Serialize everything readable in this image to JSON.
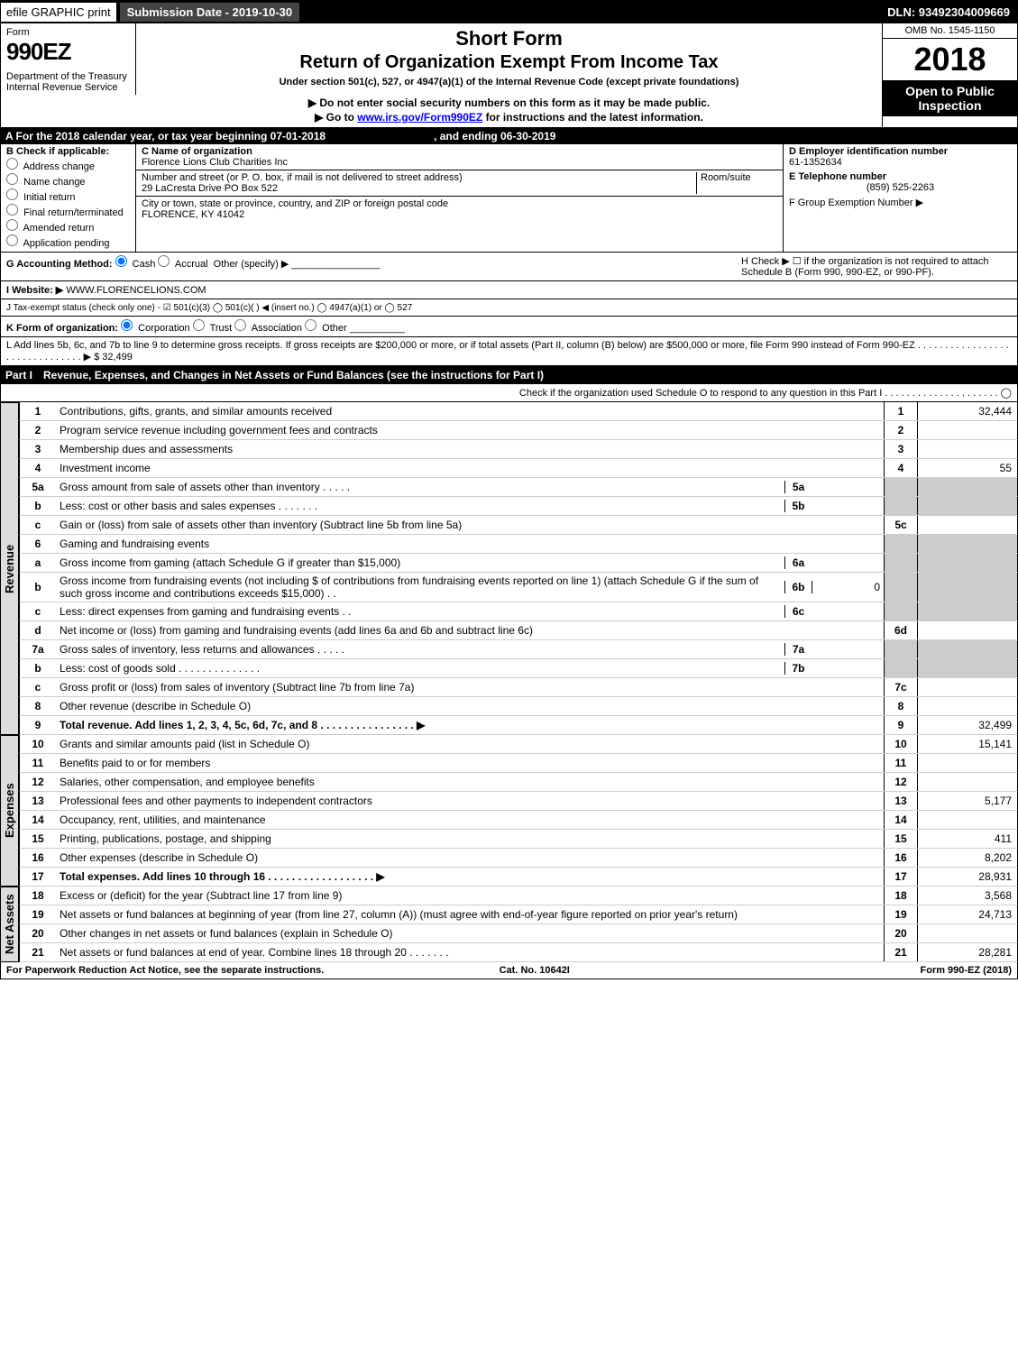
{
  "topbar": {
    "efile": "efile GRAPHIC print",
    "submission": "Submission Date - 2019-10-30",
    "dln": "DLN: 93492304009669"
  },
  "header": {
    "form_word": "Form",
    "form_no": "990EZ",
    "short": "Short Form",
    "title": "Return of Organization Exempt From Income Tax",
    "subtitle": "Under section 501(c), 527, or 4947(a)(1) of the Internal Revenue Code (except private foundations)",
    "warn": "▶ Do not enter social security numbers on this form as it may be made public.",
    "goto_pre": "▶ Go to ",
    "goto_link": "www.irs.gov/Form990EZ",
    "goto_post": " for instructions and the latest information.",
    "dept1": "Department of the Treasury",
    "dept2": "Internal Revenue Service",
    "omb": "OMB No. 1545-1150",
    "year": "2018",
    "open": "Open to Public Inspection"
  },
  "period": {
    "a": "A  For the 2018 calendar year, or tax year beginning 07-01-2018",
    "end": ", and ending 06-30-2019"
  },
  "box_b": {
    "label": "B  Check if applicable:",
    "opts": [
      "Address change",
      "Name change",
      "Initial return",
      "Final return/terminated",
      "Amended return",
      "Application pending"
    ]
  },
  "box_c": {
    "name_lab": "C Name of organization",
    "name": "Florence Lions Club Charities Inc",
    "addr_lab": "Number and street (or P. O. box, if mail is not delivered to street address)",
    "room_lab": "Room/suite",
    "addr": "29 LaCresta Drive PO Box 522",
    "city_lab": "City or town, state or province, country, and ZIP or foreign postal code",
    "city": "FLORENCE, KY  41042"
  },
  "box_d": {
    "ein_lab": "D Employer identification number",
    "ein": "61-1352634",
    "tel_lab": "E Telephone number",
    "tel": "(859) 525-2263",
    "grp_lab": "F Group Exemption Number  ▶"
  },
  "row_g": {
    "lab": "G Accounting Method:",
    "cash": "Cash",
    "accrual": "Accrual",
    "other": "Other (specify) ▶"
  },
  "row_h": {
    "text": "H  Check ▶ ☐ if the organization is not required to attach Schedule B (Form 990, 990-EZ, or 990-PF)."
  },
  "row_i": {
    "lab": "I Website: ▶",
    "val": "WWW.FLORENCELIONS.COM"
  },
  "row_j": {
    "text": "J Tax-exempt status (check only one) - ☑ 501(c)(3)  ◯ 501(c)(  ) ◀ (insert no.)  ◯ 4947(a)(1) or  ◯ 527"
  },
  "row_k": {
    "lab": "K Form of organization:",
    "opts": [
      "Corporation",
      "Trust",
      "Association",
      "Other"
    ]
  },
  "row_l": {
    "text": "L Add lines 5b, 6c, and 7b to line 9 to determine gross receipts. If gross receipts are $200,000 or more, or if total assets (Part II, column (B) below) are $500,000 or more, file Form 990 instead of Form 990-EZ  .  .  .  .  .  .  .  .  .  .  .  .  .  .  .  .  .  .  .  .  .  .  .  .  .  .  .  .  .  .  . ▶ $ 32,499"
  },
  "part1": {
    "num": "Part I",
    "title": "Revenue, Expenses, and Changes in Net Assets or Fund Balances (see the instructions for Part I)",
    "check": "Check if the organization used Schedule O to respond to any question in this Part I .  .  .  .  .  .  .  .  .  .  .  .  .  .  .  .  .  .  .  .  .  ◯"
  },
  "sections": {
    "rev": "Revenue",
    "exp": "Expenses",
    "na": "Net Assets"
  },
  "lines": [
    {
      "n": "1",
      "t": "Contributions, gifts, grants, and similar amounts received",
      "box": "1",
      "amt": "32,444"
    },
    {
      "n": "2",
      "t": "Program service revenue including government fees and contracts",
      "box": "2",
      "amt": ""
    },
    {
      "n": "3",
      "t": "Membership dues and assessments",
      "box": "3",
      "amt": ""
    },
    {
      "n": "4",
      "t": "Investment income",
      "box": "4",
      "amt": "55"
    },
    {
      "n": "5a",
      "t": "Gross amount from sale of assets other than inventory  .  .  .  .  .",
      "sb": "5a",
      "sa": ""
    },
    {
      "n": "b",
      "t": "Less: cost or other basis and sales expenses  .  .  .  .  .  .  .",
      "sb": "5b",
      "sa": ""
    },
    {
      "n": "c",
      "t": "Gain or (loss) from sale of assets other than inventory (Subtract line 5b from line 5a)",
      "box": "5c",
      "amt": ""
    },
    {
      "n": "6",
      "t": "Gaming and fundraising events",
      "noamt": true
    },
    {
      "n": "a",
      "t": "Gross income from gaming (attach Schedule G if greater than $15,000)",
      "sb": "6a",
      "sa": ""
    },
    {
      "n": "b",
      "t": "Gross income from fundraising events (not including $                         of contributions from fundraising events reported on line 1) (attach Schedule G if the sum of such gross income and contributions exceeds $15,000)   .  .",
      "sb": "6b",
      "sa": "0"
    },
    {
      "n": "c",
      "t": "Less: direct expenses from gaming and fundraising events    .  .",
      "sb": "6c",
      "sa": ""
    },
    {
      "n": "d",
      "t": "Net income or (loss) from gaming and fundraising events (add lines 6a and 6b and subtract line 6c)",
      "box": "6d",
      "amt": ""
    },
    {
      "n": "7a",
      "t": "Gross sales of inventory, less returns and allowances  .  .  .  .  .",
      "sb": "7a",
      "sa": ""
    },
    {
      "n": "b",
      "t": "Less: cost of goods sold       .  .  .  .  .  .  .  .  .  .  .  .  .  .",
      "sb": "7b",
      "sa": ""
    },
    {
      "n": "c",
      "t": "Gross profit or (loss) from sales of inventory (Subtract line 7b from line 7a)",
      "box": "7c",
      "amt": ""
    },
    {
      "n": "8",
      "t": "Other revenue (describe in Schedule O)",
      "box": "8",
      "amt": ""
    },
    {
      "n": "9",
      "t": "Total revenue. Add lines 1, 2, 3, 4, 5c, 6d, 7c, and 8   .  .  .  .  .  .  .  .  .  .  .  .  .  .  .  . ▶",
      "box": "9",
      "amt": "32,499",
      "bold": true
    }
  ],
  "exp_lines": [
    {
      "n": "10",
      "t": "Grants and similar amounts paid (list in Schedule O)",
      "box": "10",
      "amt": "15,141"
    },
    {
      "n": "11",
      "t": "Benefits paid to or for members",
      "box": "11",
      "amt": ""
    },
    {
      "n": "12",
      "t": "Salaries, other compensation, and employee benefits",
      "box": "12",
      "amt": ""
    },
    {
      "n": "13",
      "t": "Professional fees and other payments to independent contractors",
      "box": "13",
      "amt": "5,177"
    },
    {
      "n": "14",
      "t": "Occupancy, rent, utilities, and maintenance",
      "box": "14",
      "amt": ""
    },
    {
      "n": "15",
      "t": "Printing, publications, postage, and shipping",
      "box": "15",
      "amt": "411"
    },
    {
      "n": "16",
      "t": "Other expenses (describe in Schedule O)",
      "box": "16",
      "amt": "8,202"
    },
    {
      "n": "17",
      "t": "Total expenses. Add lines 10 through 16    .  .  .  .  .  .  .  .  .  .  .  .  .  .  .  .  .  . ▶",
      "box": "17",
      "amt": "28,931",
      "bold": true
    }
  ],
  "na_lines": [
    {
      "n": "18",
      "t": "Excess or (deficit) for the year (Subtract line 17 from line 9)",
      "box": "18",
      "amt": "3,568"
    },
    {
      "n": "19",
      "t": "Net assets or fund balances at beginning of year (from line 27, column (A)) (must agree with end-of-year figure reported on prior year's return)",
      "box": "19",
      "amt": "24,713"
    },
    {
      "n": "20",
      "t": "Other changes in net assets or fund balances (explain in Schedule O)",
      "box": "20",
      "amt": ""
    },
    {
      "n": "21",
      "t": "Net assets or fund balances at end of year. Combine lines 18 through 20    .  .  .  .  .  .  .",
      "box": "21",
      "amt": "28,281"
    }
  ],
  "footer": {
    "left": "For Paperwork Reduction Act Notice, see the separate instructions.",
    "mid": "Cat. No. 10642I",
    "right": "Form 990-EZ (2018)"
  }
}
